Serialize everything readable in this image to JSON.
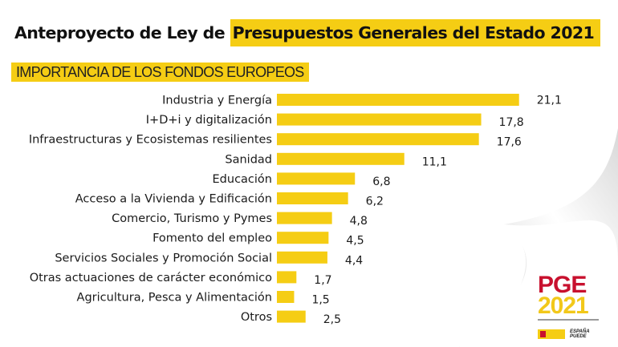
{
  "header": {
    "title_plain": "Anteproyecto de Ley de ",
    "title_highlight": "Presupuestos Generales del Estado 2021",
    "subtitle": "IMPORTANCIA DE LOS FONDOS EUROPEOS"
  },
  "chart_data": {
    "type": "bar",
    "orientation": "horizontal",
    "title": "IMPORTANCIA DE LOS FONDOS EUROPEOS",
    "xlabel": "",
    "ylabel": "",
    "grid": false,
    "legend": "none",
    "bar_color": "#f5cd14",
    "categories": [
      "Industria y Energía",
      "I+D+i y digitalización",
      "Infraestructuras y Ecosistemas resilientes",
      "Sanidad",
      "Educación",
      "Acceso a la Vivienda y Edificación",
      "Comercio, Turismo y Pymes",
      "Fomento del empleo",
      "Servicios Sociales y Promoción Social",
      "Otras actuaciones de carácter económico",
      "Agricultura, Pesca y Alimentación",
      "Otros"
    ],
    "values": [
      21.1,
      17.8,
      17.6,
      11.1,
      6.8,
      6.2,
      4.8,
      4.5,
      4.4,
      1.7,
      1.5,
      2.5
    ],
    "value_labels": [
      "21,1",
      "17,8",
      "17,6",
      "11,1",
      "6,8",
      "6,2",
      "4,8",
      "4,5",
      "4,4",
      "1,7",
      "1,5",
      "2,5"
    ]
  },
  "logo": {
    "line1": "PGE",
    "line2": "2021",
    "tagline_1": "ESPAÑA",
    "tagline_2": "PUEDE",
    "colors": {
      "red": "#c8102e",
      "yellow": "#f2c81a"
    }
  }
}
